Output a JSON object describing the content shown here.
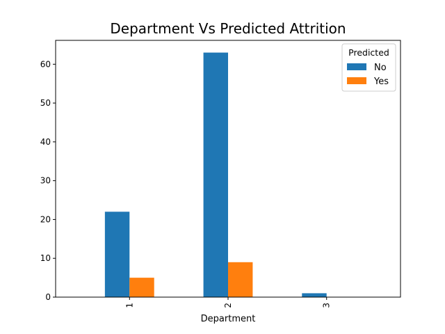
{
  "chart_data": {
    "type": "bar",
    "title": "Department Vs Predicted Attrition",
    "xlabel": "Department",
    "ylabel": "",
    "categories": [
      "1",
      "2",
      "3"
    ],
    "series": [
      {
        "name": "No",
        "values": [
          22,
          63,
          1
        ],
        "color": "#1f77b4"
      },
      {
        "name": "Yes",
        "values": [
          5,
          9,
          0
        ],
        "color": "#ff7f0e"
      }
    ],
    "ylim": [
      0,
      66.15
    ],
    "yticks": [
      0,
      10,
      20,
      30,
      40,
      50,
      60
    ],
    "grid": false,
    "legend": {
      "title": "Predicted",
      "placement": "top-right"
    }
  }
}
